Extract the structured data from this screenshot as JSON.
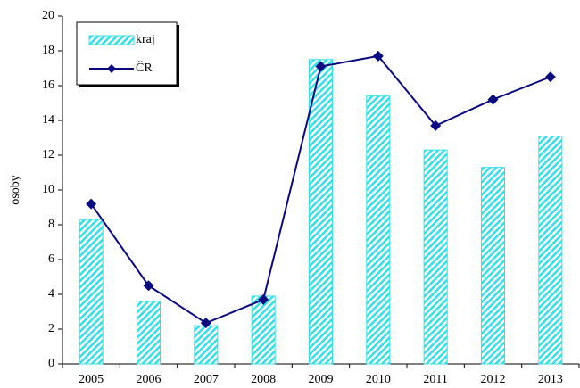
{
  "chart_data": {
    "type": "bar+line",
    "y_label": "osoby",
    "categories": [
      "2005",
      "2006",
      "2007",
      "2008",
      "2009",
      "2010",
      "2011",
      "2012",
      "2013"
    ],
    "series": [
      {
        "name": "kraj",
        "type": "bar",
        "color": "#33e0e8",
        "values": [
          8.3,
          3.6,
          2.2,
          3.9,
          17.5,
          15.4,
          12.3,
          11.3,
          13.1
        ]
      },
      {
        "name": "ČR",
        "type": "line",
        "color": "#0a0a80",
        "values": [
          9.2,
          4.5,
          2.35,
          3.7,
          17.1,
          17.7,
          13.7,
          15.2,
          16.5
        ]
      }
    ],
    "ylim": [
      0,
      20
    ],
    "yticks": [
      0,
      2,
      4,
      6,
      8,
      10,
      12,
      14,
      16,
      18,
      20
    ],
    "legend": "upper left"
  }
}
